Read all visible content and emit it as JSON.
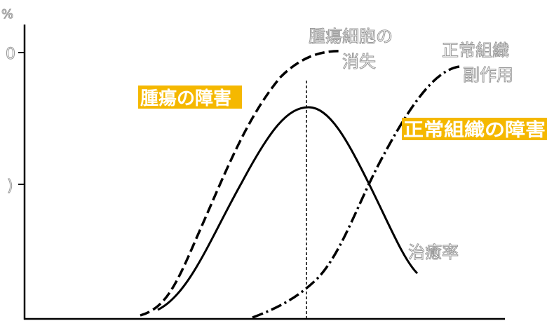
{
  "axis": {
    "unit": "%",
    "tick_top": "0",
    "tick_mid": ")"
  },
  "curves": {
    "tumor_loss": {
      "line1": "腫瘍細胞の",
      "line2": "消失"
    },
    "normal_side_effect": {
      "line1": "正常組織",
      "line2": "副作用"
    },
    "cure_rate": "治癒率"
  },
  "highlights": {
    "tumor_damage": "腫瘍の障害",
    "normal_damage": "正常組織の障害"
  }
}
